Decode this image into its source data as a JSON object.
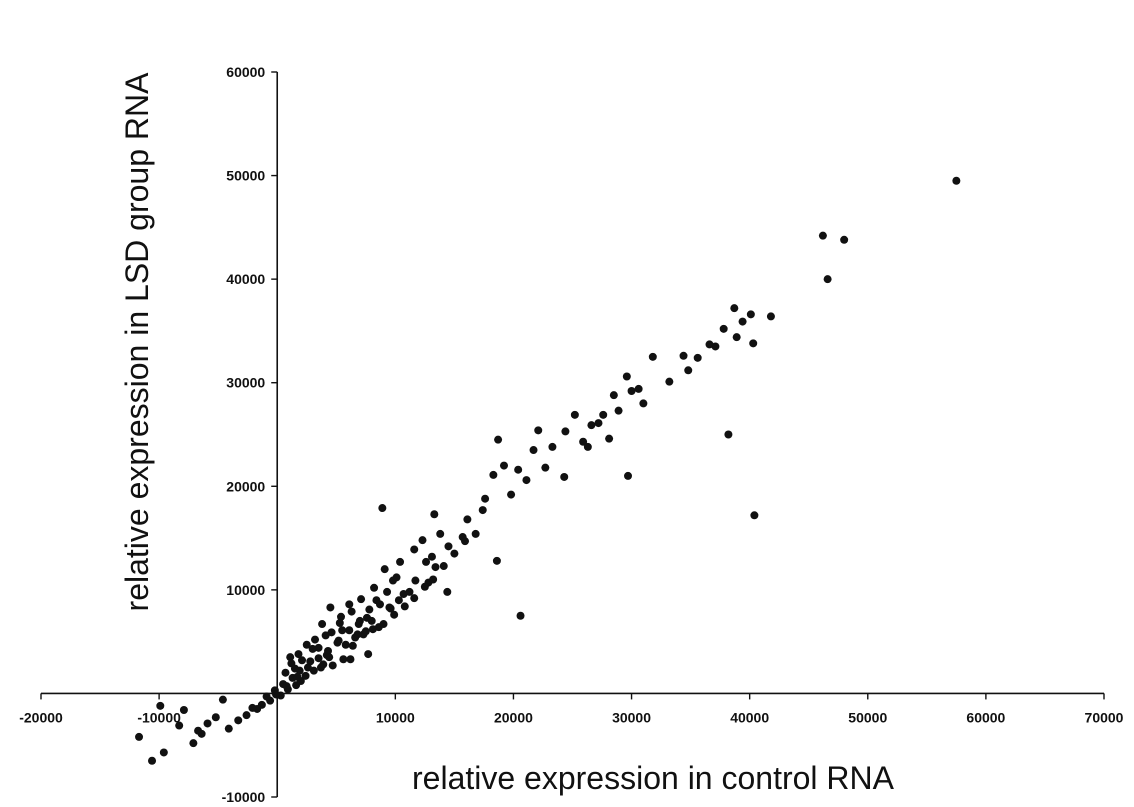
{
  "chart_data": {
    "type": "scatter",
    "title": "",
    "xlabel": "relative expression in control RNA",
    "ylabel": "relative expression in LSD group RNA",
    "xlim": [
      -20000,
      70000
    ],
    "ylim": [
      -10000,
      60000
    ],
    "x_ticks": [
      -20000,
      -10000,
      0,
      10000,
      20000,
      30000,
      40000,
      50000,
      60000,
      70000
    ],
    "y_ticks": [
      -10000,
      0,
      10000,
      20000,
      30000,
      40000,
      50000,
      60000
    ],
    "x_tick_labels": [
      "-20000",
      "-10000",
      "",
      "10000",
      "20000",
      "30000",
      "40000",
      "50000",
      "60000",
      "70000"
    ],
    "y_tick_labels": [
      "-10000",
      "",
      "10000",
      "20000",
      "30000",
      "40000",
      "50000",
      "60000"
    ],
    "grid": false,
    "legend": "none",
    "point_color": "#111111",
    "series": [
      {
        "points": [
          [
            57500,
            49500
          ],
          [
            46200,
            44200
          ],
          [
            48000,
            43800
          ],
          [
            46600,
            40000
          ],
          [
            41800,
            36400
          ],
          [
            38700,
            37200
          ],
          [
            40100,
            36600
          ],
          [
            40300,
            33800
          ],
          [
            38200,
            25000
          ],
          [
            40400,
            17200
          ],
          [
            20600,
            7500
          ],
          [
            35600,
            32400
          ],
          [
            34400,
            32600
          ],
          [
            37100,
            33500
          ],
          [
            31800,
            32500
          ],
          [
            30000,
            29200
          ],
          [
            29600,
            30600
          ],
          [
            28500,
            28800
          ],
          [
            31000,
            28000
          ],
          [
            27600,
            26900
          ],
          [
            29700,
            21000
          ],
          [
            26600,
            25900
          ],
          [
            25200,
            26900
          ],
          [
            24400,
            25300
          ],
          [
            23300,
            23800
          ],
          [
            22100,
            25400
          ],
          [
            21700,
            23500
          ],
          [
            20400,
            21600
          ],
          [
            19200,
            22000
          ],
          [
            18700,
            24500
          ],
          [
            18300,
            21100
          ],
          [
            18600,
            12800
          ],
          [
            17400,
            17700
          ],
          [
            16100,
            16800
          ],
          [
            15700,
            15100
          ],
          [
            17600,
            18800
          ],
          [
            14500,
            14200
          ],
          [
            13800,
            15400
          ],
          [
            13400,
            12200
          ],
          [
            12800,
            10700
          ],
          [
            14400,
            9800
          ],
          [
            13300,
            17300
          ],
          [
            12600,
            12700
          ],
          [
            11700,
            10900
          ],
          [
            10700,
            9600
          ],
          [
            9800,
            10900
          ],
          [
            9600,
            8200
          ],
          [
            8600,
            6400
          ],
          [
            8400,
            9000
          ],
          [
            7600,
            7300
          ],
          [
            6900,
            6700
          ],
          [
            6600,
            5400
          ],
          [
            7700,
            3800
          ],
          [
            6200,
            3300
          ],
          [
            5500,
            6100
          ],
          [
            5100,
            4900
          ],
          [
            4600,
            5900
          ],
          [
            4200,
            3700
          ],
          [
            3900,
            2800
          ],
          [
            3500,
            4400
          ],
          [
            3100,
            2200
          ],
          [
            2800,
            3100
          ],
          [
            2400,
            1700
          ],
          [
            1900,
            2200
          ],
          [
            1600,
            800
          ],
          [
            1300,
            1500
          ],
          [
            900,
            400
          ],
          [
            500,
            900
          ],
          [
            300,
            -200
          ],
          [
            -200,
            300
          ],
          [
            -600,
            -700
          ],
          [
            -900,
            -300
          ],
          [
            -1300,
            -1100
          ],
          [
            -1700,
            -1500
          ],
          [
            -2100,
            -1400
          ],
          [
            -2600,
            -2100
          ],
          [
            -3300,
            -2600
          ],
          [
            -4100,
            -3400
          ],
          [
            -5200,
            -2300
          ],
          [
            -5900,
            -2900
          ],
          [
            -6400,
            -3900
          ],
          [
            -7100,
            -4800
          ],
          [
            -8300,
            -3100
          ],
          [
            -9600,
            -5700
          ],
          [
            -10600,
            -6500
          ],
          [
            -9900,
            -1200
          ],
          [
            -11700,
            -4200
          ],
          [
            -7900,
            -1600
          ],
          [
            -6700,
            -3600
          ],
          [
            1100,
            3500
          ],
          [
            2000,
            1200
          ],
          [
            -4600,
            -600
          ],
          [
            8900,
            17900
          ],
          [
            10100,
            11200
          ],
          [
            9100,
            12000
          ],
          [
            11200,
            9800
          ],
          [
            6100,
            8600
          ],
          [
            5400,
            7400
          ],
          [
            4500,
            8300
          ],
          [
            3800,
            6700
          ],
          [
            3200,
            5200
          ],
          [
            2500,
            4700
          ],
          [
            1800,
            3800
          ],
          [
            1200,
            2900
          ],
          [
            700,
            2000
          ],
          [
            4700,
            2700
          ],
          [
            5600,
            3300
          ],
          [
            6400,
            4600
          ],
          [
            7300,
            5700
          ],
          [
            8100,
            6200
          ],
          [
            9000,
            6700
          ],
          [
            9900,
            7600
          ],
          [
            10800,
            8400
          ],
          [
            11600,
            9200
          ],
          [
            12500,
            10300
          ],
          [
            13200,
            11000
          ],
          [
            14100,
            12300
          ],
          [
            15000,
            13500
          ],
          [
            15900,
            14700
          ],
          [
            16800,
            15400
          ],
          [
            7100,
            9100
          ],
          [
            8200,
            10200
          ],
          [
            6300,
            7900
          ],
          [
            5300,
            6800
          ],
          [
            4100,
            5600
          ],
          [
            3000,
            4300
          ],
          [
            2100,
            3200
          ],
          [
            1500,
            2400
          ],
          [
            10400,
            12700
          ],
          [
            11600,
            13900
          ],
          [
            12300,
            14800
          ],
          [
            13100,
            13200
          ],
          [
            9300,
            9800
          ],
          [
            8700,
            8600
          ],
          [
            7800,
            8100
          ],
          [
            7000,
            7000
          ],
          [
            6100,
            6100
          ],
          [
            5200,
            5100
          ],
          [
            4300,
            4100
          ],
          [
            3500,
            3400
          ],
          [
            2600,
            2500
          ],
          [
            1700,
            1600
          ],
          [
            800,
            700
          ],
          [
            -100,
            -100
          ],
          [
            9500,
            8300
          ],
          [
            10300,
            9000
          ],
          [
            7500,
            6000
          ],
          [
            6800,
            5700
          ],
          [
            3700,
            2500
          ],
          [
            4400,
            3500
          ],
          [
            5800,
            4700
          ],
          [
            8000,
            7000
          ],
          [
            19800,
            19200
          ],
          [
            21100,
            20600
          ],
          [
            22700,
            21800
          ],
          [
            24300,
            20900
          ],
          [
            25900,
            24300
          ],
          [
            27200,
            26100
          ],
          [
            28100,
            24600
          ],
          [
            28900,
            27300
          ],
          [
            30600,
            29400
          ],
          [
            33200,
            30100
          ],
          [
            34800,
            31200
          ],
          [
            36600,
            33700
          ],
          [
            37800,
            35200
          ],
          [
            39400,
            35900
          ],
          [
            38900,
            34400
          ],
          [
            26300,
            23800
          ]
        ]
      }
    ]
  }
}
